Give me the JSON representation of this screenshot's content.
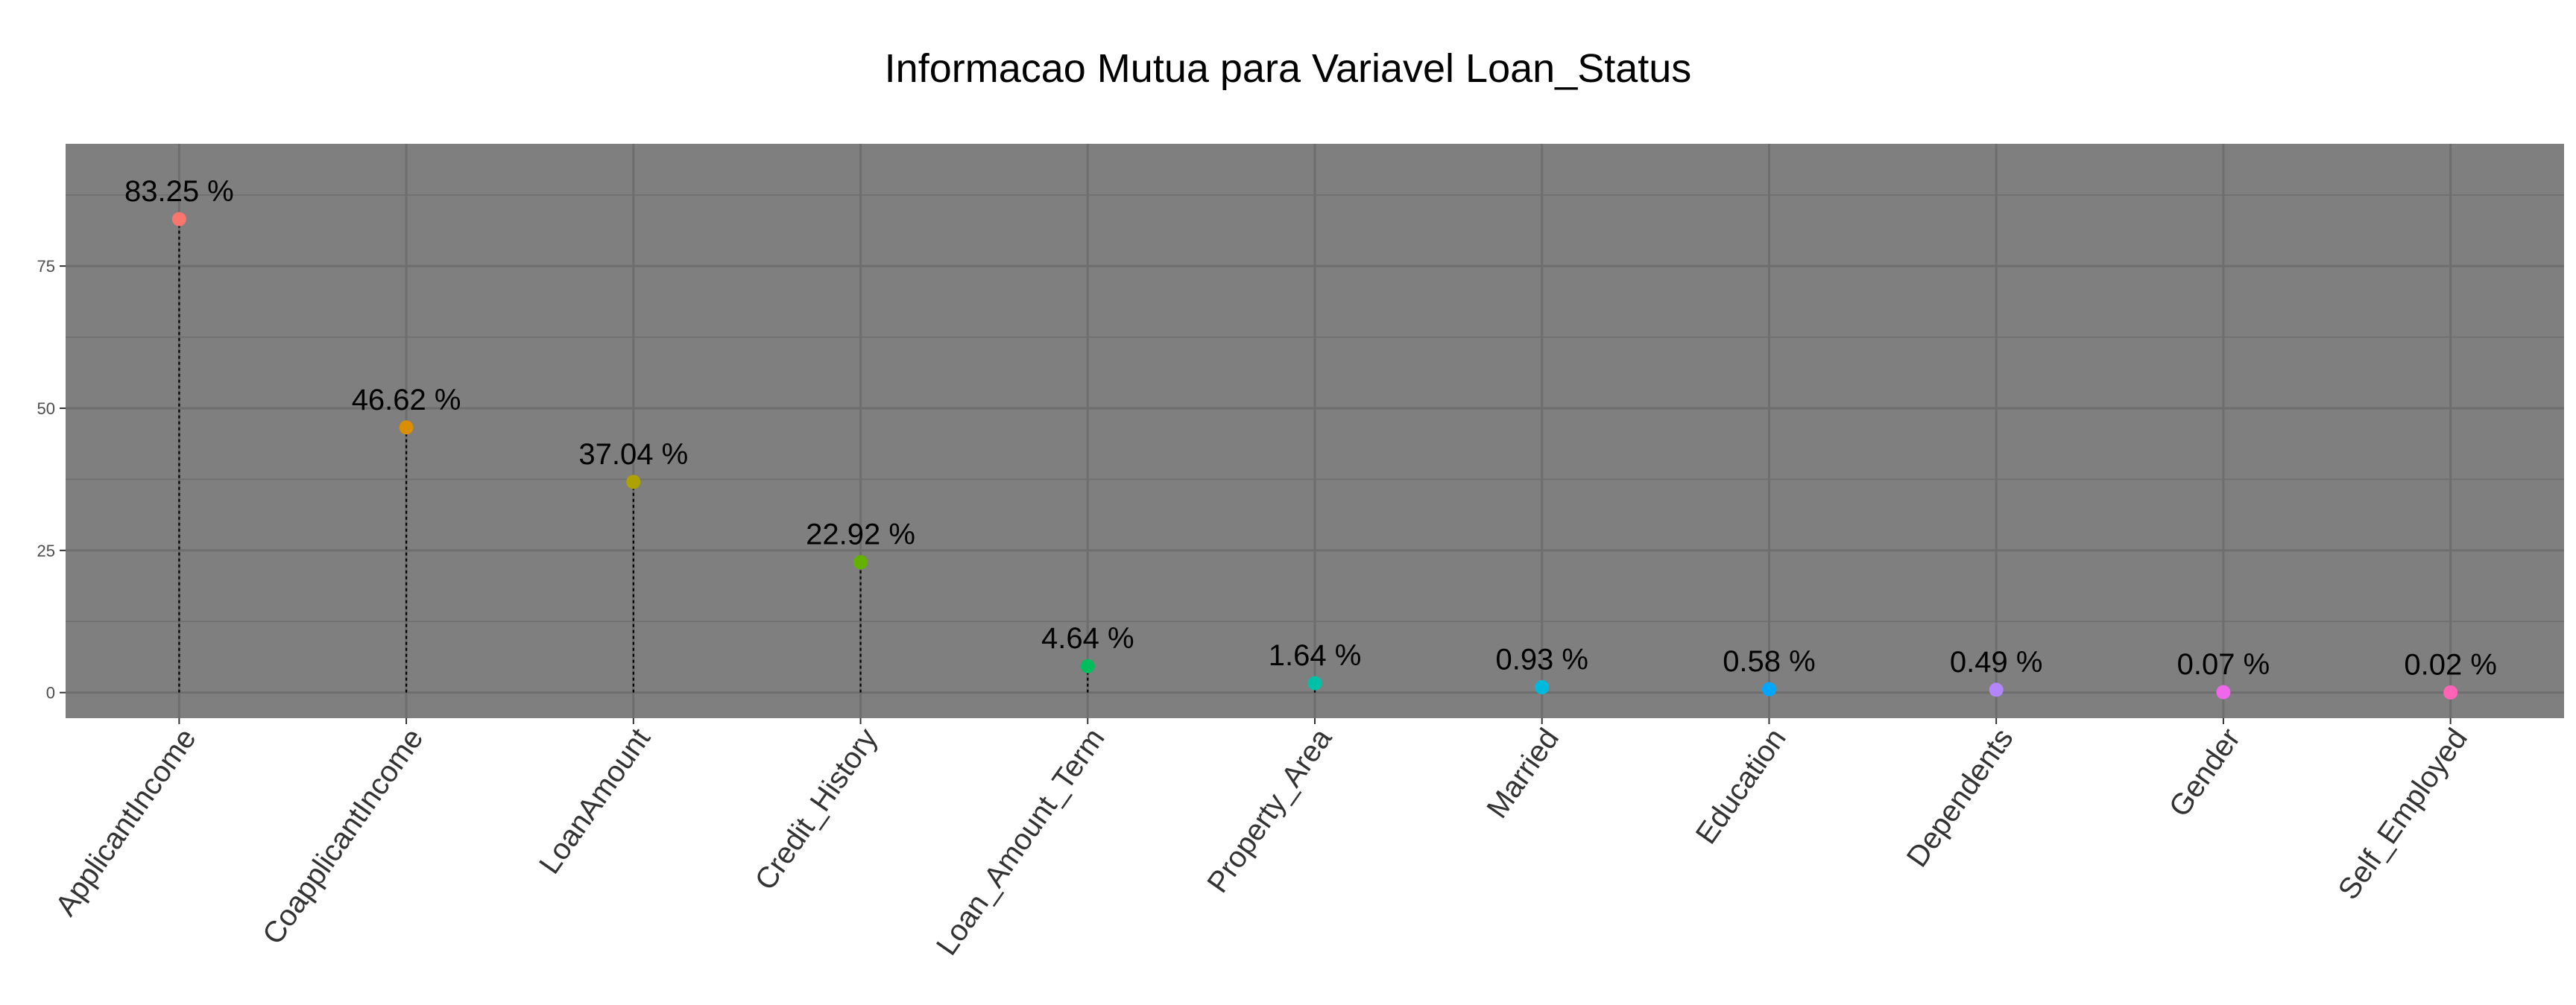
{
  "chart_data": {
    "type": "lollipop",
    "title": "Informacao Mutua para Variavel Loan_Status",
    "xlabel": "",
    "ylabel": "",
    "categories": [
      "ApplicantIncome",
      "CoapplicantIncome",
      "LoanAmount",
      "Credit_History",
      "Loan_Amount_Term",
      "Property_Area",
      "Married",
      "Education",
      "Dependents",
      "Gender",
      "Self_Employed"
    ],
    "values": [
      83.25,
      46.62,
      37.04,
      22.92,
      4.64,
      1.64,
      0.93,
      0.58,
      0.49,
      0.07,
      0.02
    ],
    "value_labels": [
      "83.25 %",
      "46.62 %",
      "37.04 %",
      "22.92 %",
      "4.64 %",
      "1.64 %",
      "0.93 %",
      "0.58 %",
      "0.49 %",
      "0.07 %",
      "0.02 %"
    ],
    "colors": [
      "#F8766D",
      "#DB8E00",
      "#AEA200",
      "#64B200",
      "#00BD5C",
      "#00C1A7",
      "#00BADE",
      "#00A6FF",
      "#B385FF",
      "#EF67EB",
      "#FF63B6"
    ],
    "y_ticks": [
      0,
      25,
      50,
      75
    ],
    "y_tick_labels": [
      "0",
      "25",
      "50",
      "75"
    ],
    "ylim": [
      -4.5,
      96.5
    ],
    "grid": true,
    "legend": "none",
    "panel_background": "#7F7F7F",
    "grid_color": "#6E6E6E",
    "stem_color": "#000000"
  }
}
